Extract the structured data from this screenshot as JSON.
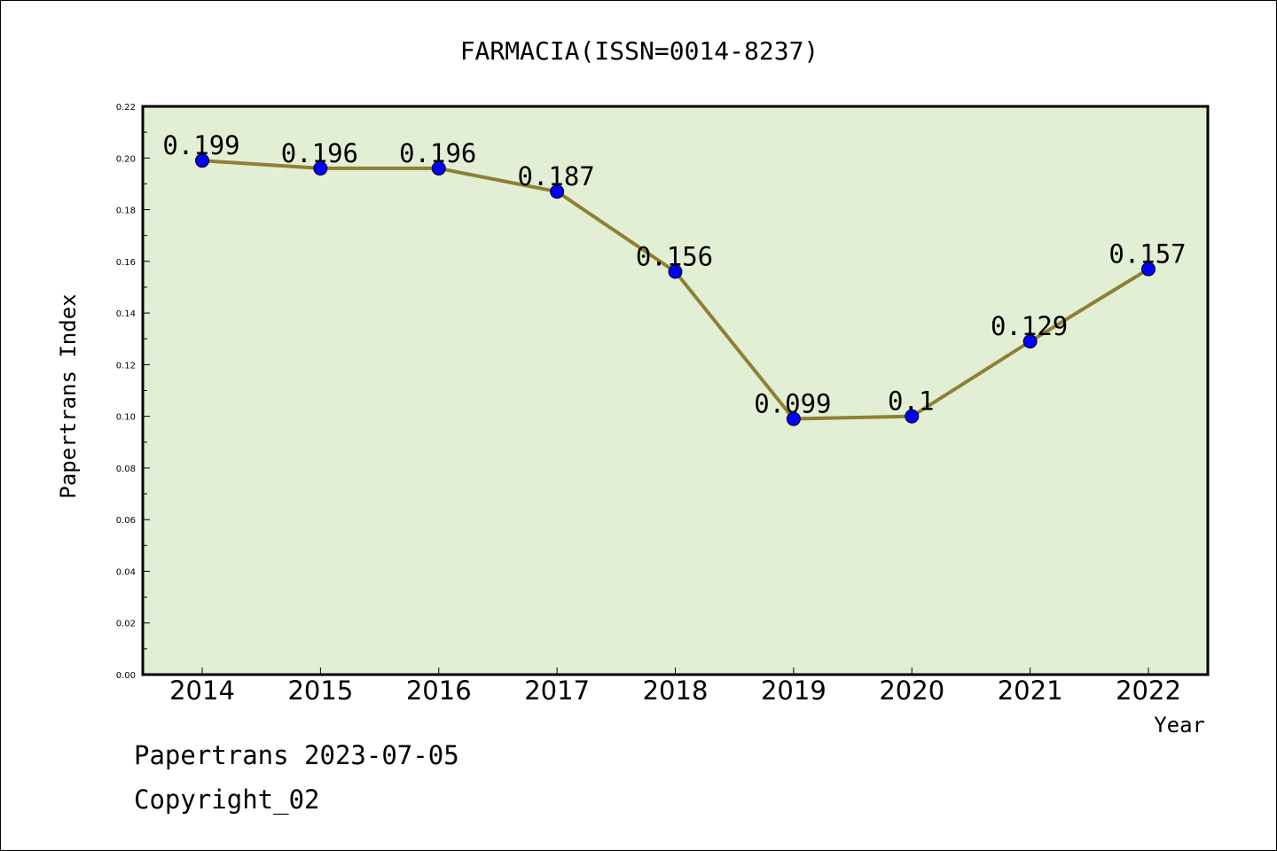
{
  "chart_data": {
    "type": "line",
    "title": "FARMACIA(ISSN=0014-8237)",
    "xlabel": "Year",
    "ylabel": "Papertrans Index",
    "categories": [
      "2014",
      "2015",
      "2016",
      "2017",
      "2018",
      "2019",
      "2020",
      "2021",
      "2022"
    ],
    "series": [
      {
        "values": [
          0.199,
          0.196,
          0.196,
          0.187,
          0.156,
          0.099,
          0.1,
          0.129,
          0.157
        ],
        "labels": [
          "0.199",
          "0.196",
          "0.196",
          "0.187",
          "0.156",
          "0.099",
          "0.1",
          "0.129",
          "0.157"
        ]
      }
    ],
    "ylim": [
      0,
      0.22
    ],
    "yticks": [
      "0.00",
      "0.02",
      "0.04",
      "0.06",
      "0.08",
      "0.10",
      "0.12",
      "0.14",
      "0.16",
      "0.18",
      "0.20",
      "0.22"
    ],
    "grid": false,
    "colors": {
      "plot_bg": "#e2efd5",
      "line": "#8e8034",
      "marker": "#0000ff"
    }
  },
  "footer": {
    "line1": "Papertrans 2023-07-05",
    "line2": "Copyright_02"
  }
}
